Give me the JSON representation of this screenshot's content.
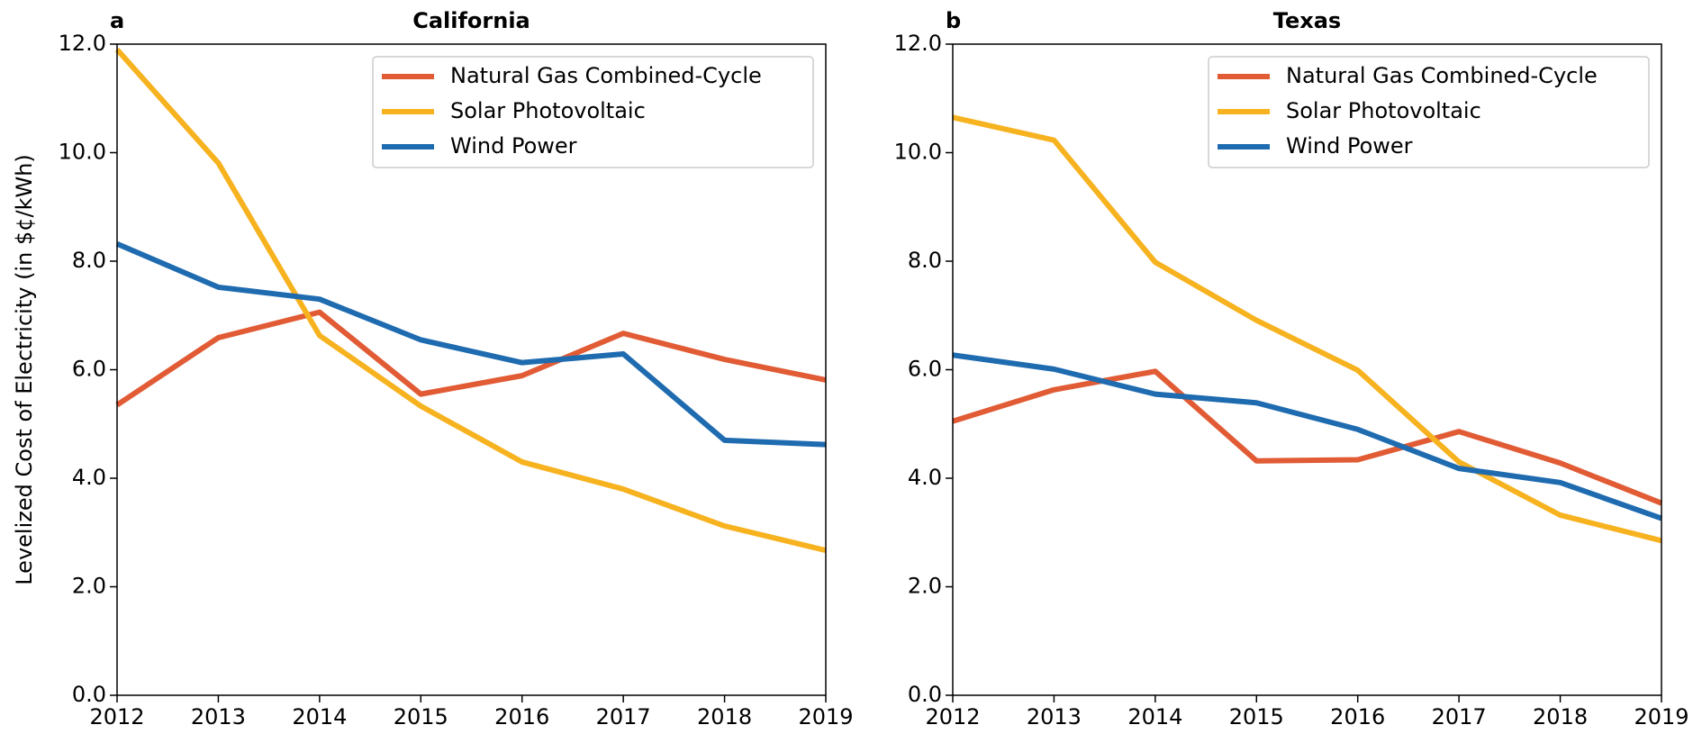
{
  "chart_data": [
    {
      "type": "line",
      "panel": "a",
      "title": "California",
      "y_label": "Levelized Cost of Electricity (in $¢/kWh)",
      "x": [
        2012,
        2013,
        2014,
        2015,
        2016,
        2017,
        2018,
        2019
      ],
      "xlim": [
        2012,
        2019
      ],
      "xticks": [
        2012,
        2013,
        2014,
        2015,
        2016,
        2017,
        2018,
        2019
      ],
      "ylim": [
        0,
        12
      ],
      "yticks": [
        {
          "value": 0,
          "label": "0.0"
        },
        {
          "value": 2,
          "label": "2.0"
        },
        {
          "value": 4,
          "label": "4.0"
        },
        {
          "value": 6,
          "label": "6.0"
        },
        {
          "value": 8,
          "label": "8.0"
        },
        {
          "value": 10,
          "label": "10.0"
        },
        {
          "value": 12,
          "label": "12.0"
        }
      ],
      "legend": "upper right",
      "series": [
        {
          "name": "Natural Gas Combined-Cycle",
          "color": "#e15b35",
          "values": [
            5.35,
            6.59,
            7.06,
            5.55,
            5.89,
            6.67,
            6.19,
            5.81
          ]
        },
        {
          "name": "Solar Photovoltaic",
          "color": "#f7b21f",
          "values": [
            11.9,
            9.81,
            6.63,
            5.33,
            4.3,
            3.8,
            3.12,
            2.67
          ]
        },
        {
          "name": "Wind Power",
          "color": "#1f6bb0",
          "values": [
            8.32,
            7.52,
            7.3,
            6.55,
            6.13,
            6.29,
            4.7,
            4.62
          ]
        }
      ]
    },
    {
      "type": "line",
      "panel": "b",
      "title": "Texas",
      "x": [
        2012,
        2013,
        2014,
        2015,
        2016,
        2017,
        2018,
        2019
      ],
      "xlim": [
        2012,
        2019
      ],
      "xticks": [
        2012,
        2013,
        2014,
        2015,
        2016,
        2017,
        2018,
        2019
      ],
      "ylim": [
        0,
        12
      ],
      "yticks": [
        {
          "value": 0,
          "label": "0.0"
        },
        {
          "value": 2,
          "label": "2.0"
        },
        {
          "value": 4,
          "label": "4.0"
        },
        {
          "value": 6,
          "label": "6.0"
        },
        {
          "value": 8,
          "label": "8.0"
        },
        {
          "value": 10,
          "label": "10.0"
        },
        {
          "value": 12,
          "label": "12.0"
        }
      ],
      "legend": "upper right",
      "series": [
        {
          "name": "Natural Gas Combined-Cycle",
          "color": "#e15b35",
          "values": [
            5.05,
            5.63,
            5.97,
            4.32,
            4.34,
            4.86,
            4.28,
            3.54
          ]
        },
        {
          "name": "Solar Photovoltaic",
          "color": "#f7b21f",
          "values": [
            10.65,
            10.23,
            7.98,
            6.91,
            5.99,
            4.3,
            3.32,
            2.85
          ]
        },
        {
          "name": "Wind Power",
          "color": "#1f6bb0",
          "values": [
            6.27,
            6.01,
            5.55,
            5.39,
            4.9,
            4.18,
            3.92,
            3.26
          ]
        }
      ]
    }
  ]
}
